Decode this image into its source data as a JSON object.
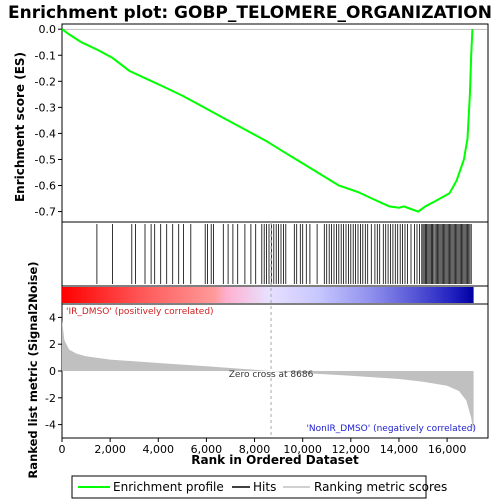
{
  "chart_data": {
    "type": "line",
    "title": "Enrichment plot: GOBP_TELOMERE_ORGANIZATION",
    "top_panel": {
      "ylabel": "Enrichment score (ES)",
      "ylim": [
        -0.74,
        0.02
      ],
      "yticks": [
        0.0,
        -0.1,
        -0.2,
        -0.3,
        -0.4,
        -0.5,
        -0.6,
        -0.7
      ],
      "ytick_labels": [
        "0.0",
        "-0.1",
        "-0.2",
        "-0.3",
        "-0.4",
        "-0.5",
        "-0.6",
        "-0.7"
      ],
      "series": [
        {
          "name": "Enrichment profile",
          "color": "#00ff00",
          "x": [
            0,
            300,
            800,
            1500,
            2100,
            2800,
            3500,
            4200,
            5000,
            5700,
            6300,
            7000,
            7700,
            8500,
            9200,
            10000,
            10800,
            11500,
            12300,
            13000,
            13600,
            14000,
            14200,
            14500,
            14800,
            15100,
            15500,
            15800,
            16100,
            16400,
            16700,
            16850,
            16950,
            17000,
            17050
          ],
          "y": [
            0.0,
            -0.02,
            -0.05,
            -0.08,
            -0.11,
            -0.16,
            -0.19,
            -0.22,
            -0.255,
            -0.29,
            -0.32,
            -0.355,
            -0.39,
            -0.43,
            -0.47,
            -0.515,
            -0.56,
            -0.6,
            -0.625,
            -0.655,
            -0.68,
            -0.685,
            -0.68,
            -0.69,
            -0.7,
            -0.68,
            -0.66,
            -0.645,
            -0.63,
            -0.58,
            -0.5,
            -0.42,
            -0.25,
            -0.1,
            0.0
          ]
        }
      ]
    },
    "hits": [
      1450,
      2100,
      2900,
      3050,
      3450,
      3700,
      3850,
      4100,
      4350,
      4600,
      4850,
      5050,
      5350,
      5950,
      6050,
      6200,
      6300,
      6700,
      6900,
      7100,
      7300,
      7600,
      7850,
      8050,
      8300,
      8400,
      8500,
      8600,
      8700,
      8800,
      8900,
      9000,
      9100,
      9200,
      9300,
      9650,
      9750,
      9900,
      10000,
      10150,
      10300,
      10600,
      10900,
      11000,
      11100,
      11200,
      11300,
      11400,
      11500,
      11600,
      11700,
      11800,
      11900,
      12000,
      12100,
      12200,
      12300,
      12400,
      12500,
      12600,
      12700,
      12850,
      13000,
      13100,
      13200,
      13350,
      13450,
      13550,
      13650,
      13750,
      13850,
      13950,
      14050,
      14150,
      14250,
      14350,
      14500,
      14650,
      14750,
      14850,
      14950,
      15000,
      15050,
      15100,
      15150,
      15200,
      15250,
      15300,
      15350,
      15400,
      15450,
      15500,
      15550,
      15600,
      15650,
      15700,
      15750,
      15800,
      15850,
      15900,
      15950,
      16000,
      16050,
      16100,
      16150,
      16200,
      16250,
      16300,
      16350,
      16400,
      16450,
      16500,
      16550,
      16600,
      16650,
      16700,
      16750,
      16800,
      16850,
      16900,
      16950,
      17000
    ],
    "bottom_panel": {
      "ylabel": "Ranked list metric (Signal2Noise)",
      "ylim": [
        -5,
        5
      ],
      "yticks": [
        4,
        2,
        0,
        -2,
        -4
      ],
      "ytick_labels": [
        "4",
        "2",
        "0",
        "-2",
        "-4"
      ],
      "metric_profile": {
        "x": [
          0,
          100,
          300,
          600,
          1000,
          2000,
          4000,
          6000,
          8000,
          8686,
          10000,
          12000,
          14000,
          15000,
          16000,
          16500,
          16800,
          17000,
          17100
        ],
        "y": [
          3.8,
          2.3,
          1.6,
          1.3,
          1.1,
          0.85,
          0.6,
          0.35,
          0.1,
          0.0,
          -0.15,
          -0.35,
          -0.6,
          -0.8,
          -1.1,
          -1.5,
          -2.2,
          -3.5,
          -4.7
        ]
      },
      "zero_cross_label": "Zero cross at 8686",
      "zero_cross": 8686,
      "pos_label": "'IR_DMSO' (positively correlated)",
      "neg_label": "'NonIR_DMSO' (negatively correlated)"
    },
    "xlabel": "Rank in Ordered Dataset",
    "xlim": [
      0,
      17700
    ],
    "xticks": [
      0,
      2000,
      4000,
      6000,
      8000,
      10000,
      12000,
      14000,
      16000
    ],
    "xtick_labels": [
      "0",
      "2,000",
      "4,000",
      "6,000",
      "8,000",
      "10,000",
      "12,000",
      "14,000",
      "16,000"
    ],
    "legend": {
      "placement": "bottom",
      "items": [
        {
          "label": "Enrichment profile",
          "color": "#00ff00"
        },
        {
          "label": "Hits",
          "color": "#000000"
        },
        {
          "label": "Ranking metric scores",
          "color": "#c0c0c0"
        }
      ]
    }
  }
}
